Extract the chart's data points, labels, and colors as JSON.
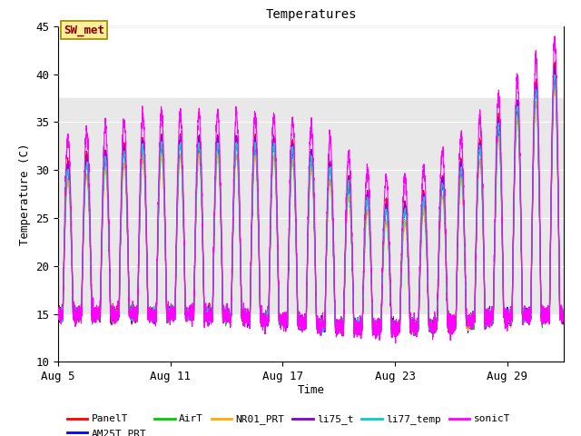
{
  "title": "Temperatures",
  "ylabel": "Temperature (C)",
  "xlabel": "Time",
  "ylim": [
    10,
    45
  ],
  "series_names": [
    "PanelT",
    "AM25T_PRT",
    "AirT",
    "NR01_PRT",
    "li75_t",
    "li77_temp",
    "sonicT"
  ],
  "series_colors": [
    "#ff0000",
    "#0000ff",
    "#00cc00",
    "#ffaa00",
    "#8800cc",
    "#00cccc",
    "#ff00ff"
  ],
  "series_linewidths": [
    0.8,
    0.8,
    0.8,
    0.8,
    0.8,
    0.8,
    0.8
  ],
  "annotation_text": "SW_met",
  "annotation_box_color": "#ffee99",
  "annotation_box_edge": "#998800",
  "annotation_text_color": "#880000",
  "shade_ymin": 15.0,
  "shade_ymax": 37.5,
  "shade_color": "#e8e8e8",
  "xtick_labels": [
    "Aug 5",
    "Aug 11",
    "Aug 17",
    "Aug 23",
    "Aug 29"
  ],
  "xtick_day_offsets": [
    0,
    6,
    12,
    18,
    24
  ],
  "n_days": 27,
  "pts_per_day": 144,
  "background_color": "#ffffff",
  "font_family": "monospace",
  "font_size_title": 10,
  "font_size_axis": 9,
  "font_size_tick": 9,
  "font_size_legend": 8,
  "seed": 42
}
